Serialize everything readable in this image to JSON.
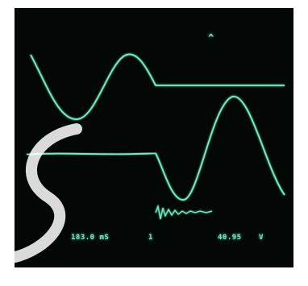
{
  "readouts": {
    "timebase": "183.0 mS",
    "channel": "1",
    "voltage": "40.95",
    "voltage_unit": "V",
    "marker_glyph": "^"
  },
  "colors": {
    "screen_background": "#030806",
    "trace": "#6ff0c0",
    "readout_text": "#7fe8c9"
  },
  "icons": {
    "marker": "caret-up-icon",
    "watermark": "watermark-swirl-icon"
  }
}
